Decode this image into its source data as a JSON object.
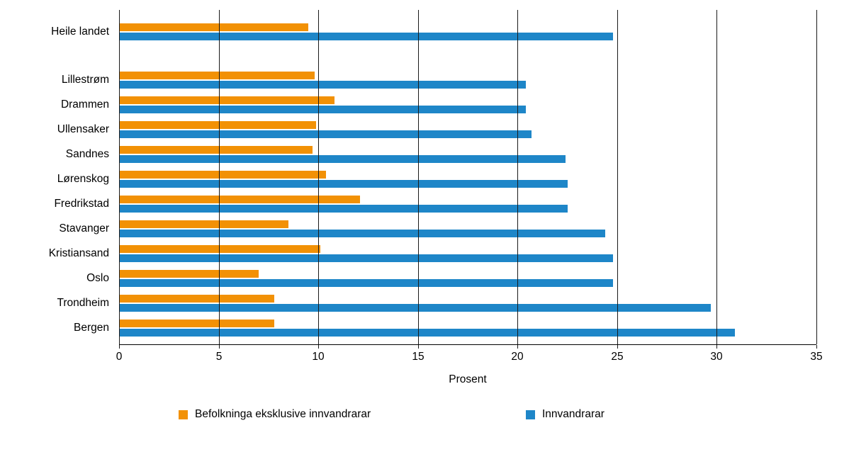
{
  "chart_data": {
    "type": "bar",
    "orientation": "horizontal",
    "title": "",
    "categories": [
      "Heile landet",
      "Lillestrøm",
      "Drammen",
      "Ullensaker",
      "Sandnes",
      "Lørenskog",
      "Fredrikstad",
      "Stavanger",
      "Kristiansand",
      "Oslo",
      "Trondheim",
      "Bergen"
    ],
    "series": [
      {
        "name": "Befolkninga eksklusive innvandrarar",
        "color": "#F29105",
        "values": [
          9.5,
          9.8,
          10.8,
          9.9,
          9.7,
          10.4,
          12.1,
          8.5,
          10.1,
          7.0,
          7.8,
          7.8
        ]
      },
      {
        "name": "Innvandrarar",
        "color": "#1E86C8",
        "values": [
          24.8,
          20.4,
          20.4,
          20.7,
          22.4,
          22.5,
          22.5,
          24.4,
          24.8,
          24.8,
          29.7,
          30.9
        ]
      }
    ],
    "xlabel": "Prosent",
    "xlim": [
      0,
      35
    ],
    "xticks": [
      0,
      5,
      10,
      15,
      20,
      25,
      30,
      35
    ],
    "grid": true,
    "legend_position": "bottom",
    "axis_color": "#1a1a1a",
    "gap_after_first_category": true
  }
}
